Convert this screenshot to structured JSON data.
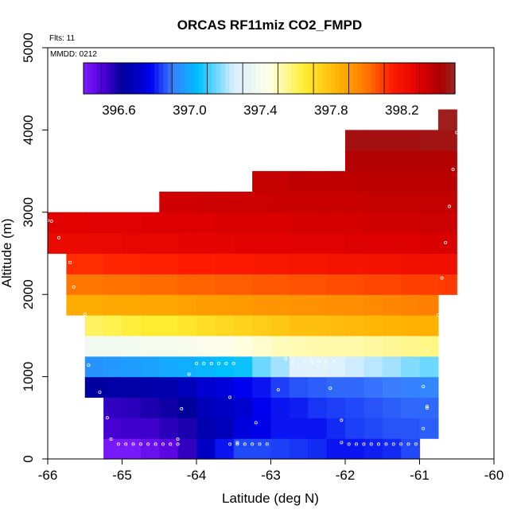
{
  "chart_data": {
    "type": "heatmap",
    "title": "ORCAS RF11miz CO2_FMPD",
    "notes": [
      "Flts: 11",
      "MMDD: 0212"
    ],
    "xlabel": "Latitude (deg N)",
    "ylabel": "Altitude (m)",
    "xlim": [
      -66,
      -60
    ],
    "ylim": [
      0,
      5000
    ],
    "x_ticks": [
      -66,
      -65,
      -64,
      -63,
      -62,
      -61,
      -60
    ],
    "y_ticks": [
      0,
      1000,
      2000,
      3000,
      4000,
      5000
    ],
    "colorbar": {
      "range": [
        396.4,
        398.5
      ],
      "ticks": [
        "396.6",
        "397.0",
        "397.4",
        "397.8",
        "398.2"
      ],
      "stops": [
        [
          396.4,
          "#7f1fff"
        ],
        [
          396.5,
          "#5500dd"
        ],
        [
          396.62,
          "#00009a"
        ],
        [
          396.78,
          "#0000ee"
        ],
        [
          396.9,
          "#3a7dff"
        ],
        [
          397.05,
          "#00c0ff"
        ],
        [
          397.25,
          "#d8eeff"
        ],
        [
          397.45,
          "#ffffe8"
        ],
        [
          397.65,
          "#ffee33"
        ],
        [
          397.85,
          "#ffb000"
        ],
        [
          398.0,
          "#ff7700"
        ],
        [
          398.15,
          "#ff1a00"
        ],
        [
          398.3,
          "#dd0000"
        ],
        [
          398.42,
          "#aa0000"
        ],
        [
          398.5,
          "#9a2828"
        ]
      ]
    },
    "bins": [
      {
        "alt": [
          0,
          250
        ],
        "lat": [
          -65.25,
          -61.0
        ],
        "values": [
          396.42,
          396.42,
          396.45,
          396.48,
          396.55,
          396.7,
          396.8,
          396.85,
          396.85,
          396.84,
          396.83,
          396.82,
          396.8,
          396.8,
          396.81,
          396.82,
          396.85
        ]
      },
      {
        "alt": [
          250,
          500
        ],
        "lat": [
          -65.25,
          -60.75
        ],
        "values": [
          396.52,
          396.53,
          396.53,
          396.56,
          396.58,
          396.66,
          396.68,
          396.75,
          396.77,
          396.8,
          396.8,
          396.8,
          396.82,
          396.84,
          396.85,
          396.86,
          396.86,
          396.87
        ]
      },
      {
        "alt": [
          500,
          750
        ],
        "lat": [
          -65.25,
          -60.75
        ],
        "values": [
          396.55,
          396.56,
          396.58,
          396.6,
          396.62,
          396.68,
          396.7,
          396.72,
          396.78,
          396.8,
          396.81,
          396.83,
          396.84,
          396.85,
          396.86,
          396.87,
          396.88,
          396.88
        ]
      },
      {
        "alt": [
          750,
          1000
        ],
        "lat": [
          -65.5,
          -60.75
        ],
        "values": [
          396.63,
          396.64,
          396.64,
          396.65,
          396.66,
          396.68,
          396.72,
          396.74,
          396.78,
          396.8,
          396.84,
          396.86,
          396.87,
          396.88,
          396.88,
          396.89,
          396.9,
          396.91,
          396.92
        ]
      },
      {
        "alt": [
          1000,
          1250
        ],
        "lat": [
          -65.5,
          -60.75
        ],
        "values": [
          396.95,
          396.96,
          396.97,
          396.98,
          397.0,
          397.01,
          397.03,
          397.05,
          397.06,
          397.15,
          397.2,
          397.28,
          397.3,
          397.27,
          397.24,
          397.22,
          397.2,
          397.17,
          397.15
        ]
      },
      {
        "alt": [
          1250,
          1500
        ],
        "lat": [
          -65.5,
          -60.75
        ],
        "values": [
          397.38,
          397.38,
          397.39,
          397.4,
          397.4,
          397.41,
          397.43,
          397.44,
          397.46,
          397.48,
          397.5,
          397.51,
          397.52,
          397.52,
          397.52,
          397.53,
          397.54,
          397.55,
          397.56
        ]
      },
      {
        "alt": [
          1500,
          1750
        ],
        "lat": [
          -65.5,
          -60.75
        ],
        "values": [
          397.6,
          397.62,
          397.64,
          397.66,
          397.66,
          397.68,
          397.7,
          397.72,
          397.74,
          397.76,
          397.78,
          397.8,
          397.8,
          397.81,
          397.82,
          397.83,
          397.84,
          397.85,
          397.85
        ]
      },
      {
        "alt": [
          1750,
          2000
        ],
        "lat": [
          -65.75,
          -60.75
        ],
        "values": [
          397.86,
          397.86,
          397.87,
          397.87,
          397.88,
          397.88,
          397.89,
          397.9,
          397.9,
          397.91,
          397.92,
          397.92,
          397.93,
          397.93,
          397.94,
          397.94,
          397.95,
          397.96,
          397.97,
          397.98
        ]
      },
      {
        "alt": [
          2000,
          2250
        ],
        "lat": [
          -65.75,
          -60.5
        ],
        "values": [
          398.0,
          398.0,
          398.01,
          398.01,
          398.02,
          398.02,
          398.03,
          398.03,
          398.04,
          398.04,
          398.05,
          398.05,
          398.06,
          398.06,
          398.07,
          398.07,
          398.08,
          398.08,
          398.09,
          398.09,
          398.1
        ]
      },
      {
        "alt": [
          2250,
          2500
        ],
        "lat": [
          -65.75,
          -60.5
        ],
        "values": [
          398.12,
          398.12,
          398.13,
          398.13,
          398.14,
          398.14,
          398.15,
          398.15,
          398.16,
          398.16,
          398.17,
          398.17,
          398.18,
          398.18,
          398.19,
          398.19,
          398.2,
          398.2,
          398.21,
          398.21,
          398.22
        ]
      },
      {
        "alt": [
          2500,
          2750
        ],
        "lat": [
          -66.0,
          -60.5
        ],
        "values": [
          398.24,
          398.24,
          398.25,
          398.25,
          398.26,
          398.26,
          398.26,
          398.27,
          398.27,
          398.27,
          398.28,
          398.28,
          398.28,
          398.29,
          398.29,
          398.29,
          398.3,
          398.3,
          398.3,
          398.3,
          398.31,
          398.31
        ]
      },
      {
        "alt": [
          2750,
          3000
        ],
        "lat": [
          -66.0,
          -60.5
        ],
        "values": [
          398.28,
          398.28,
          398.29,
          398.29,
          398.29,
          398.3,
          398.3,
          398.3,
          398.3,
          398.31,
          398.31,
          398.31,
          398.31,
          398.32,
          398.32,
          398.32,
          398.32,
          398.33,
          398.33,
          398.33,
          398.34,
          398.34
        ]
      },
      {
        "alt": [
          3000,
          3250
        ],
        "lat": [
          -64.5,
          -60.5
        ],
        "values": [
          398.33,
          398.33,
          398.34,
          398.34,
          398.34,
          398.34,
          398.35,
          398.35,
          398.35,
          398.35,
          398.35,
          398.36,
          398.36,
          398.36,
          398.36,
          398.36
        ]
      },
      {
        "alt": [
          3250,
          3500
        ],
        "lat": [
          -63.25,
          -60.5
        ],
        "values": [
          398.36,
          398.36,
          398.37,
          398.37,
          398.37,
          398.37,
          398.38,
          398.38,
          398.38,
          398.38,
          398.38
        ]
      },
      {
        "alt": [
          3500,
          3750
        ],
        "lat": [
          -62.0,
          -60.5
        ],
        "values": [
          398.4,
          398.4,
          398.4,
          398.4,
          398.4,
          398.4
        ]
      },
      {
        "alt": [
          3750,
          4000
        ],
        "lat": [
          -62.0,
          -60.5
        ],
        "values": [
          398.45,
          398.45,
          398.45,
          398.45,
          398.46,
          398.46
        ]
      },
      {
        "alt": [
          4000,
          4250
        ],
        "lat": [
          -60.75,
          -60.5
        ],
        "values": [
          398.48
        ]
      }
    ],
    "samples": [
      [
        -65.05,
        180
      ],
      [
        -64.95,
        180
      ],
      [
        -64.85,
        180
      ],
      [
        -64.75,
        180
      ],
      [
        -64.65,
        180
      ],
      [
        -64.55,
        180
      ],
      [
        -64.45,
        180
      ],
      [
        -64.35,
        180
      ],
      [
        -64.25,
        180
      ],
      [
        -65.15,
        240
      ],
      [
        -64.25,
        240
      ],
      [
        -63.55,
        180
      ],
      [
        -63.45,
        180
      ],
      [
        -63.35,
        180
      ],
      [
        -63.25,
        180
      ],
      [
        -63.15,
        180
      ],
      [
        -63.05,
        180
      ],
      [
        -63.45,
        200
      ],
      [
        -61.95,
        180
      ],
      [
        -61.85,
        180
      ],
      [
        -61.75,
        180
      ],
      [
        -61.65,
        180
      ],
      [
        -61.55,
        180
      ],
      [
        -61.45,
        180
      ],
      [
        -61.35,
        180
      ],
      [
        -61.25,
        180
      ],
      [
        -61.15,
        180
      ],
      [
        -61.05,
        180
      ],
      [
        -62.05,
        200
      ],
      [
        -65.2,
        500
      ],
      [
        -64.2,
        610
      ],
      [
        -63.2,
        440
      ],
      [
        -62.05,
        470
      ],
      [
        -60.95,
        370
      ],
      [
        -60.9,
        620
      ],
      [
        -60.9,
        640
      ],
      [
        -65.3,
        810
      ],
      [
        -63.55,
        750
      ],
      [
        -62.9,
        840
      ],
      [
        -62.2,
        860
      ],
      [
        -60.95,
        880
      ],
      [
        -65.45,
        1140
      ],
      [
        -64.1,
        1030
      ],
      [
        -64.0,
        1160
      ],
      [
        -63.9,
        1160
      ],
      [
        -63.8,
        1160
      ],
      [
        -63.7,
        1160
      ],
      [
        -63.6,
        1160
      ],
      [
        -63.5,
        1160
      ],
      [
        -62.8,
        1220
      ],
      [
        -62.7,
        1180
      ],
      [
        -62.55,
        1180
      ],
      [
        -62.45,
        1180
      ],
      [
        -62.35,
        1180
      ],
      [
        -62.25,
        1180
      ],
      [
        -62.15,
        1180
      ],
      [
        -60.9,
        1320
      ],
      [
        -65.5,
        1760
      ],
      [
        -65.65,
        2090
      ],
      [
        -65.7,
        2390
      ],
      [
        -65.85,
        2690
      ],
      [
        -65.95,
        2890
      ],
      [
        -66.0,
        2900
      ],
      [
        -60.75,
        1750
      ],
      [
        -60.7,
        2200
      ],
      [
        -60.65,
        2630
      ],
      [
        -60.6,
        3070
      ],
      [
        -60.55,
        3520
      ],
      [
        -60.5,
        3970
      ]
    ]
  }
}
